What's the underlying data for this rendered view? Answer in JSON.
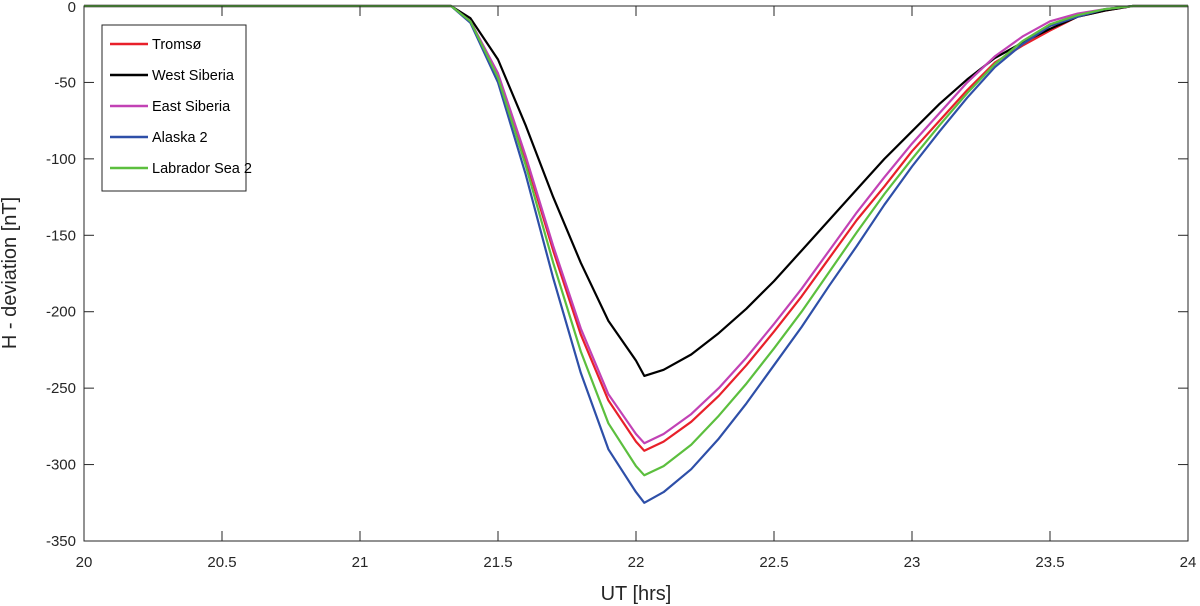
{
  "chart_data": {
    "type": "line",
    "title": "",
    "xlabel": "UT [hrs]",
    "ylabel": "H - deviation [nT]",
    "xlim": [
      20,
      24
    ],
    "ylim": [
      -350,
      0
    ],
    "grid": false,
    "legend_position": "top-left",
    "xticks": [
      {
        "value": 20,
        "label": "20"
      },
      {
        "value": 20.5,
        "label": "20.5"
      },
      {
        "value": 21,
        "label": "21"
      },
      {
        "value": 21.5,
        "label": "21.5"
      },
      {
        "value": 22,
        "label": "22"
      },
      {
        "value": 22.5,
        "label": "22.5"
      },
      {
        "value": 23,
        "label": "23"
      },
      {
        "value": 23.5,
        "label": "23.5"
      },
      {
        "value": 24,
        "label": "24"
      }
    ],
    "yticks": [
      {
        "value": 0,
        "label": "0"
      },
      {
        "value": -50,
        "label": "-50"
      },
      {
        "value": -100,
        "label": "-100"
      },
      {
        "value": -150,
        "label": "-150"
      },
      {
        "value": -200,
        "label": "-200"
      },
      {
        "value": -250,
        "label": "-250"
      },
      {
        "value": -300,
        "label": "-300"
      },
      {
        "value": -350,
        "label": "-350"
      }
    ],
    "series": [
      {
        "name": "Tromsø",
        "color": "#e8202a",
        "points": [
          [
            20,
            0
          ],
          [
            21.33,
            0
          ],
          [
            21.4,
            -10
          ],
          [
            21.5,
            -45
          ],
          [
            21.6,
            -100
          ],
          [
            21.7,
            -160
          ],
          [
            21.8,
            -215
          ],
          [
            21.9,
            -258
          ],
          [
            22.0,
            -285
          ],
          [
            22.03,
            -291
          ],
          [
            22.1,
            -285
          ],
          [
            22.2,
            -272
          ],
          [
            22.3,
            -255
          ],
          [
            22.4,
            -235
          ],
          [
            22.5,
            -213
          ],
          [
            22.6,
            -190
          ],
          [
            22.7,
            -165
          ],
          [
            22.8,
            -140
          ],
          [
            22.9,
            -118
          ],
          [
            23.0,
            -95
          ],
          [
            23.1,
            -75
          ],
          [
            23.2,
            -55
          ],
          [
            23.3,
            -37
          ],
          [
            23.4,
            -26
          ],
          [
            23.5,
            -16
          ],
          [
            23.6,
            -7
          ],
          [
            23.7,
            -3
          ],
          [
            23.8,
            0
          ],
          [
            24,
            0
          ]
        ]
      },
      {
        "name": "West Siberia",
        "color": "#000000",
        "points": [
          [
            20,
            0
          ],
          [
            21.33,
            0
          ],
          [
            21.4,
            -8
          ],
          [
            21.5,
            -35
          ],
          [
            21.6,
            -78
          ],
          [
            21.7,
            -125
          ],
          [
            21.8,
            -168
          ],
          [
            21.9,
            -206
          ],
          [
            22.0,
            -232
          ],
          [
            22.03,
            -242
          ],
          [
            22.1,
            -238
          ],
          [
            22.2,
            -228
          ],
          [
            22.3,
            -214
          ],
          [
            22.4,
            -198
          ],
          [
            22.5,
            -180
          ],
          [
            22.6,
            -160
          ],
          [
            22.7,
            -140
          ],
          [
            22.8,
            -120
          ],
          [
            22.9,
            -100
          ],
          [
            23.0,
            -82
          ],
          [
            23.1,
            -64
          ],
          [
            23.2,
            -48
          ],
          [
            23.3,
            -34
          ],
          [
            23.4,
            -24
          ],
          [
            23.5,
            -15
          ],
          [
            23.6,
            -7
          ],
          [
            23.7,
            -3
          ],
          [
            23.8,
            0
          ],
          [
            24,
            0
          ]
        ]
      },
      {
        "name": "East Siberia",
        "color": "#c242b5",
        "points": [
          [
            20,
            0
          ],
          [
            21.33,
            0
          ],
          [
            21.4,
            -10
          ],
          [
            21.5,
            -44
          ],
          [
            21.6,
            -98
          ],
          [
            21.7,
            -157
          ],
          [
            21.8,
            -211
          ],
          [
            21.9,
            -254
          ],
          [
            22.0,
            -280
          ],
          [
            22.03,
            -286
          ],
          [
            22.1,
            -280
          ],
          [
            22.2,
            -267
          ],
          [
            22.3,
            -250
          ],
          [
            22.4,
            -230
          ],
          [
            22.5,
            -208
          ],
          [
            22.6,
            -185
          ],
          [
            22.7,
            -160
          ],
          [
            22.8,
            -135
          ],
          [
            22.9,
            -112
          ],
          [
            23.0,
            -90
          ],
          [
            23.1,
            -70
          ],
          [
            23.2,
            -50
          ],
          [
            23.3,
            -33
          ],
          [
            23.4,
            -20
          ],
          [
            23.5,
            -10
          ],
          [
            23.6,
            -5
          ],
          [
            23.7,
            -2
          ],
          [
            23.8,
            0
          ],
          [
            24,
            0
          ]
        ]
      },
      {
        "name": "Alaska 2",
        "color": "#2e4fa8",
        "points": [
          [
            20,
            0
          ],
          [
            21.33,
            0
          ],
          [
            21.4,
            -11
          ],
          [
            21.5,
            -50
          ],
          [
            21.6,
            -110
          ],
          [
            21.7,
            -178
          ],
          [
            21.8,
            -240
          ],
          [
            21.9,
            -290
          ],
          [
            22.0,
            -318
          ],
          [
            22.03,
            -325
          ],
          [
            22.1,
            -318
          ],
          [
            22.2,
            -303
          ],
          [
            22.3,
            -283
          ],
          [
            22.4,
            -260
          ],
          [
            22.5,
            -235
          ],
          [
            22.6,
            -210
          ],
          [
            22.7,
            -183
          ],
          [
            22.8,
            -157
          ],
          [
            22.9,
            -130
          ],
          [
            23.0,
            -105
          ],
          [
            23.1,
            -82
          ],
          [
            23.2,
            -60
          ],
          [
            23.3,
            -40
          ],
          [
            23.4,
            -25
          ],
          [
            23.5,
            -13
          ],
          [
            23.6,
            -7
          ],
          [
            23.7,
            -2
          ],
          [
            23.8,
            0
          ],
          [
            24,
            0
          ]
        ]
      },
      {
        "name": "Labrador Sea 2",
        "color": "#5cbf3e",
        "points": [
          [
            20,
            0
          ],
          [
            21.33,
            0
          ],
          [
            21.4,
            -10
          ],
          [
            21.5,
            -47
          ],
          [
            21.6,
            -104
          ],
          [
            21.7,
            -168
          ],
          [
            21.8,
            -226
          ],
          [
            21.9,
            -273
          ],
          [
            22.0,
            -301
          ],
          [
            22.03,
            -307
          ],
          [
            22.1,
            -301
          ],
          [
            22.2,
            -287
          ],
          [
            22.3,
            -268
          ],
          [
            22.4,
            -247
          ],
          [
            22.5,
            -224
          ],
          [
            22.6,
            -200
          ],
          [
            22.7,
            -174
          ],
          [
            22.8,
            -148
          ],
          [
            22.9,
            -123
          ],
          [
            23.0,
            -100
          ],
          [
            23.1,
            -78
          ],
          [
            23.2,
            -57
          ],
          [
            23.3,
            -38
          ],
          [
            23.4,
            -23
          ],
          [
            23.5,
            -12
          ],
          [
            23.6,
            -6
          ],
          [
            23.7,
            -2
          ],
          [
            23.8,
            0
          ],
          [
            24,
            0
          ]
        ]
      }
    ]
  }
}
